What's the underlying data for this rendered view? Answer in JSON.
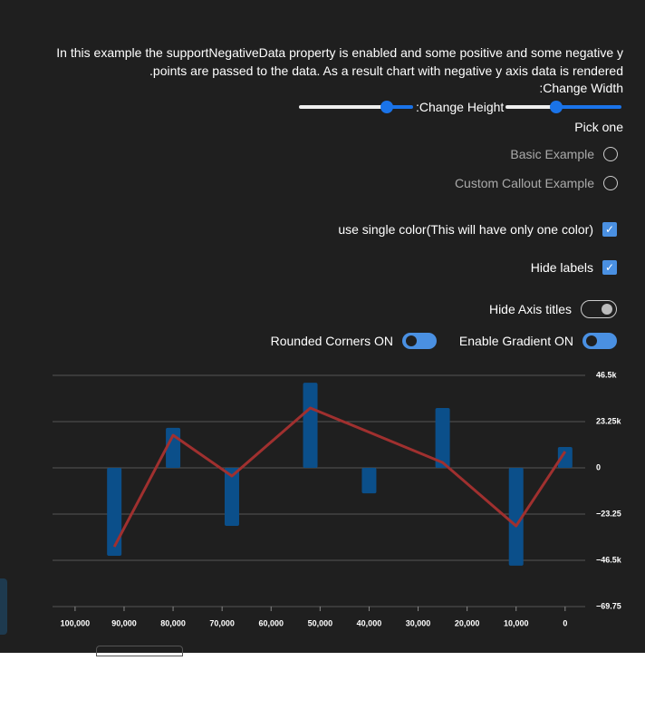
{
  "header": {
    "description": "In this example the supportNegativeData property is enabled and some positive and some negative y points are passed to the data. As a result chart with negative y axis data is rendered.",
    "change_width_label": "Change Width:",
    "change_height_label": "Change Height:"
  },
  "controls": {
    "pick_one": "Pick one",
    "radios": [
      "Basic Example",
      "Custom Callout Example"
    ],
    "checkboxes": [
      "use single color(This will have only one color)",
      "Hide labels"
    ],
    "toggles": [
      "Hide Axis titles",
      "Rounded Corners ON",
      "Enable Gradient ON"
    ]
  },
  "chart_data": {
    "type": "bar",
    "x": [
      92000,
      80000,
      68000,
      52000,
      40000,
      25000,
      10000,
      0
    ],
    "values": [
      -44200,
      20100,
      -29200,
      42800,
      -12800,
      30100,
      -49200,
      10500
    ],
    "color": "#0b4f8a",
    "line": {
      "x": [
        92000,
        80000,
        68000,
        52000,
        25000,
        10000,
        0
      ],
      "values": [
        -39700,
        16400,
        -4100,
        30100,
        2700,
        -29200,
        8200
      ],
      "color": "#a0302f"
    },
    "xlim": [
      104600,
      -4100
    ],
    "xticks": [
      {
        "value": 100000,
        "label": "100,000"
      },
      {
        "value": 90000,
        "label": "90,000"
      },
      {
        "value": 80000,
        "label": "80,000"
      },
      {
        "value": 70000,
        "label": "70,000"
      },
      {
        "value": 60000,
        "label": "60,000"
      },
      {
        "value": 50000,
        "label": "50,000"
      },
      {
        "value": 40000,
        "label": "40,000"
      },
      {
        "value": 30000,
        "label": "30,000"
      },
      {
        "value": 20000,
        "label": "20,000"
      },
      {
        "value": 10000,
        "label": "10,000"
      },
      0
    ],
    "ylim": [
      -69750,
      46500
    ],
    "yticks": [
      {
        "value": 46500,
        "label": "46.5k"
      },
      {
        "value": 23250,
        "label": "23.25k"
      },
      0,
      {
        "value": -23250,
        "label": "−23.25"
      },
      {
        "value": -46500,
        "label": "−46.5k"
      },
      {
        "value": -69750,
        "label": "−69.75"
      }
    ],
    "grid": true
  }
}
